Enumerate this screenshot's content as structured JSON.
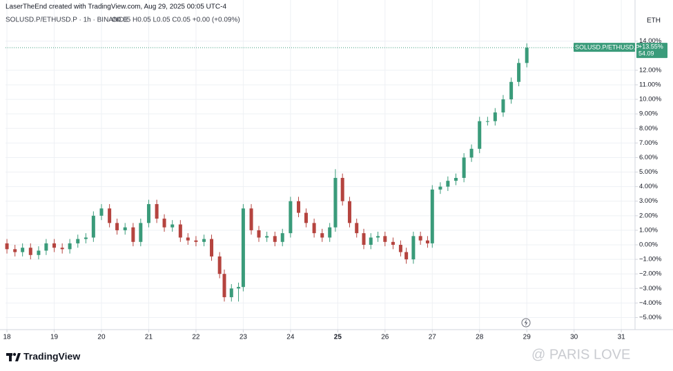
{
  "chart_data": {
    "type": "candlestick",
    "header": "LaserTheEnd created with TradingView.com, Aug 29, 2025 00:05 UTC-4",
    "symbol_line": "SOLUSD.P/ETHUSD.P · 1h · BINANCE",
    "ohlc_line": "O0.05 H0.05 L0.05 C0.05 +0.00 (+0.09%)",
    "currency": "ETH",
    "last_label": {
      "name": "SOLUSD.P/ETHUSD.P",
      "change": "+13.55%",
      "price": "54.09"
    },
    "brand": "TradingView",
    "watermark": "@ PARIS LOVE",
    "up_color": "#3a9b7a",
    "down_color": "#b5443f",
    "grid": true,
    "x": [
      18.0,
      18.17,
      18.33,
      18.5,
      18.67,
      18.83,
      19.0,
      19.17,
      19.33,
      19.5,
      19.67,
      19.83,
      20.0,
      20.17,
      20.33,
      20.5,
      20.67,
      20.83,
      21.0,
      21.17,
      21.33,
      21.5,
      21.67,
      21.83,
      22.0,
      22.17,
      22.33,
      22.5,
      22.6,
      22.75,
      22.9,
      23.0,
      23.17,
      23.33,
      23.5,
      23.67,
      23.83,
      24.0,
      24.17,
      24.33,
      24.5,
      24.67,
      24.83,
      24.95,
      25.1,
      25.25,
      25.4,
      25.55,
      25.7,
      25.85,
      26.0,
      26.17,
      26.33,
      26.45,
      26.6,
      26.75,
      26.9,
      27.0,
      27.17,
      27.33,
      27.5,
      27.67,
      27.83,
      28.0,
      28.17,
      28.33,
      28.5,
      28.67,
      28.83,
      29.0
    ],
    "open": [
      0.1,
      -0.3,
      -0.5,
      -0.2,
      -0.7,
      -0.4,
      0.1,
      -0.2,
      -0.3,
      0.1,
      0.4,
      0.5,
      2.0,
      2.5,
      1.5,
      1.0,
      1.2,
      0.2,
      1.5,
      2.8,
      1.8,
      1.2,
      1.4,
      0.5,
      0.3,
      0.2,
      0.4,
      -0.8,
      -2.0,
      -3.6,
      -3.0,
      -2.9,
      2.5,
      1.0,
      0.5,
      0.6,
      0.2,
      0.8,
      3.0,
      2.2,
      1.5,
      0.8,
      0.5,
      1.2,
      4.6,
      3.0,
      1.5,
      0.8,
      0.0,
      0.5,
      0.6,
      0.2,
      0.0,
      -0.5,
      -1.0,
      0.6,
      0.3,
      0.1,
      3.8,
      4.0,
      4.4,
      4.6,
      6.0,
      6.6,
      8.5,
      8.5,
      9.1,
      10.0,
      11.2,
      12.5
    ],
    "high": [
      0.4,
      0.0,
      0.1,
      0.1,
      -0.1,
      0.4,
      0.4,
      0.1,
      0.4,
      0.7,
      0.8,
      2.3,
      2.8,
      2.8,
      1.8,
      1.5,
      1.5,
      1.8,
      3.1,
      3.1,
      2.1,
      1.7,
      1.7,
      0.8,
      0.6,
      0.7,
      0.7,
      -0.5,
      -1.7,
      -2.7,
      -2.6,
      2.8,
      2.8,
      1.3,
      0.9,
      0.9,
      1.1,
      3.3,
      3.3,
      2.5,
      1.8,
      1.1,
      1.5,
      5.2,
      4.9,
      3.3,
      1.8,
      1.1,
      0.8,
      0.9,
      0.9,
      0.5,
      0.3,
      -0.2,
      0.9,
      0.9,
      0.6,
      4.1,
      4.3,
      4.7,
      4.9,
      6.3,
      6.9,
      8.8,
      8.8,
      9.4,
      10.3,
      11.5,
      12.8,
      13.85
    ],
    "low": [
      -0.6,
      -0.8,
      -0.8,
      -1.0,
      -1.0,
      -0.7,
      -0.5,
      -0.6,
      -0.6,
      -0.2,
      0.1,
      0.2,
      1.7,
      1.2,
      0.7,
      0.7,
      -0.1,
      -0.1,
      1.2,
      1.5,
      0.9,
      0.9,
      0.2,
      0.0,
      -0.1,
      -0.1,
      -1.1,
      -2.3,
      -3.9,
      -3.9,
      -3.9,
      -3.2,
      0.7,
      0.2,
      0.2,
      -0.1,
      -0.1,
      0.5,
      1.9,
      1.2,
      0.5,
      0.2,
      0.2,
      0.9,
      2.7,
      1.2,
      0.5,
      -0.3,
      -0.3,
      0.2,
      -0.1,
      -0.3,
      -0.8,
      -1.3,
      -1.3,
      0.0,
      -0.2,
      -0.2,
      3.5,
      3.7,
      4.1,
      4.3,
      5.7,
      6.3,
      8.2,
      8.2,
      8.8,
      9.7,
      10.9,
      12.2
    ],
    "close": [
      -0.3,
      -0.5,
      -0.2,
      -0.7,
      -0.4,
      0.1,
      -0.2,
      -0.3,
      0.1,
      0.4,
      0.5,
      2.0,
      2.5,
      1.5,
      1.0,
      1.2,
      0.2,
      1.5,
      2.8,
      1.8,
      1.2,
      1.4,
      0.5,
      0.3,
      0.2,
      0.4,
      -0.8,
      -2.0,
      -3.6,
      -3.0,
      -2.9,
      2.5,
      1.0,
      0.5,
      0.6,
      0.2,
      0.8,
      3.0,
      2.2,
      1.5,
      0.8,
      0.5,
      1.2,
      4.6,
      3.0,
      1.5,
      0.8,
      0.0,
      0.5,
      0.6,
      0.2,
      0.0,
      -0.5,
      -1.0,
      0.6,
      0.3,
      0.1,
      3.8,
      4.0,
      4.4,
      4.6,
      6.0,
      6.6,
      8.5,
      8.5,
      9.1,
      10.0,
      11.2,
      12.5,
      13.55
    ],
    "xlim": [
      17.97,
      31.29
    ],
    "xticks": [
      18,
      19,
      20,
      21,
      22,
      23,
      24,
      25,
      26,
      27,
      28,
      29,
      30,
      31
    ],
    "ylim": [
      -5.83,
      16.45
    ],
    "yticks": [
      {
        "value": 14,
        "label": "14.00%"
      },
      {
        "value": 12,
        "label": "12.00%"
      },
      {
        "value": 11,
        "label": "11.00%"
      },
      {
        "value": 10,
        "label": "10.00%"
      },
      {
        "value": 9,
        "label": "9.00%"
      },
      {
        "value": 8,
        "label": "8.00%"
      },
      {
        "value": 7,
        "label": "7.00%"
      },
      {
        "value": 6,
        "label": "6.00%"
      },
      {
        "value": 5,
        "label": "5.00%"
      },
      {
        "value": 4,
        "label": "4.00%"
      },
      {
        "value": 3,
        "label": "3.00%"
      },
      {
        "value": 2,
        "label": "2.00%"
      },
      {
        "value": 1,
        "label": "1.00%"
      },
      {
        "value": 0,
        "label": "0.00%"
      },
      {
        "value": -1,
        "label": "−1.00%"
      },
      {
        "value": -2,
        "label": "−2.00%"
      },
      {
        "value": -3,
        "label": "−3.00%"
      },
      {
        "value": -4,
        "label": "−4.00%"
      },
      {
        "value": -5,
        "label": "−5.00%"
      }
    ]
  }
}
